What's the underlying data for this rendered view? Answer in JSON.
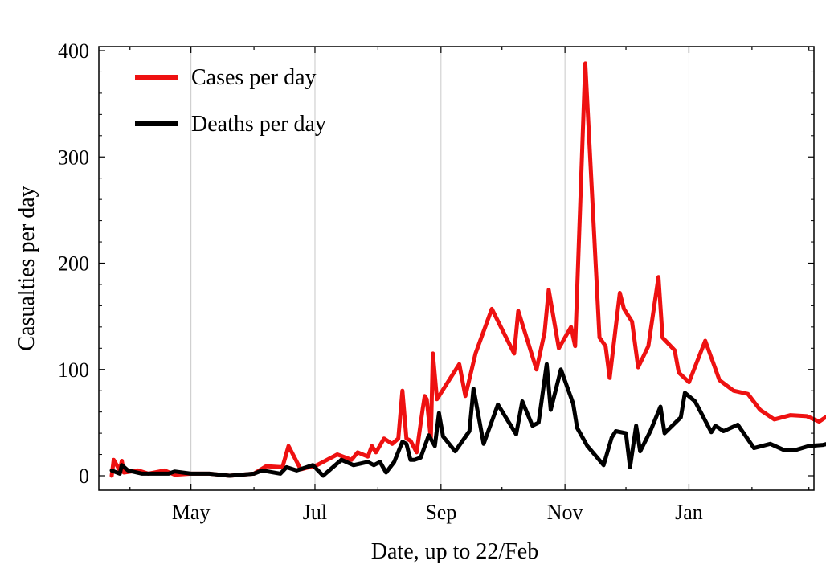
{
  "chart_data": {
    "type": "line",
    "title": "",
    "xlabel": "Date, up to 22/Feb",
    "ylabel": "Casualties per day",
    "ylim": [
      0,
      400
    ],
    "yticks": [
      0,
      100,
      200,
      300,
      400
    ],
    "x_start": "2020-03-23",
    "x_end": "2021-02-22",
    "x_tick_labels": [
      "May",
      "Jul",
      "Sep",
      "Nov",
      "Jan"
    ],
    "grid": "vertical",
    "legend_position": "top-left",
    "series": [
      {
        "name": "Cases per day",
        "color": "#ee1111",
        "points": [
          [
            "2020-03-23",
            0
          ],
          [
            "2020-03-24",
            15
          ],
          [
            "2020-03-27",
            5
          ],
          [
            "2020-03-28",
            14
          ],
          [
            "2020-03-29",
            3
          ],
          [
            "2020-04-05",
            5
          ],
          [
            "2020-04-10",
            2
          ],
          [
            "2020-04-18",
            5
          ],
          [
            "2020-04-23",
            1
          ],
          [
            "2020-05-01",
            2
          ],
          [
            "2020-05-10",
            2
          ],
          [
            "2020-05-20",
            0
          ],
          [
            "2020-06-01",
            2
          ],
          [
            "2020-06-07",
            9
          ],
          [
            "2020-06-15",
            8
          ],
          [
            "2020-06-18",
            28
          ],
          [
            "2020-06-24",
            6
          ],
          [
            "2020-07-02",
            10
          ],
          [
            "2020-07-12",
            20
          ],
          [
            "2020-07-19",
            15
          ],
          [
            "2020-07-22",
            22
          ],
          [
            "2020-07-27",
            18
          ],
          [
            "2020-07-29",
            28
          ],
          [
            "2020-07-31",
            22
          ],
          [
            "2020-08-04",
            35
          ],
          [
            "2020-08-08",
            30
          ],
          [
            "2020-08-11",
            35
          ],
          [
            "2020-08-13",
            80
          ],
          [
            "2020-08-15",
            35
          ],
          [
            "2020-08-17",
            33
          ],
          [
            "2020-08-20",
            22
          ],
          [
            "2020-08-23",
            63
          ],
          [
            "2020-08-24",
            75
          ],
          [
            "2020-08-25",
            72
          ],
          [
            "2020-08-27",
            35
          ],
          [
            "2020-08-28",
            115
          ],
          [
            "2020-08-30",
            72
          ],
          [
            "2020-09-10",
            105
          ],
          [
            "2020-09-13",
            75
          ],
          [
            "2020-09-18",
            115
          ],
          [
            "2020-09-26",
            157
          ],
          [
            "2020-10-07",
            115
          ],
          [
            "2020-10-09",
            155
          ],
          [
            "2020-10-18",
            100
          ],
          [
            "2020-10-22",
            135
          ],
          [
            "2020-10-24",
            175
          ],
          [
            "2020-10-29",
            120
          ],
          [
            "2020-11-04",
            140
          ],
          [
            "2020-11-06",
            122
          ],
          [
            "2020-11-11",
            388
          ],
          [
            "2020-11-18",
            130
          ],
          [
            "2020-11-21",
            122
          ],
          [
            "2020-11-23",
            92
          ],
          [
            "2020-11-28",
            172
          ],
          [
            "2020-11-30",
            157
          ],
          [
            "2020-12-04",
            145
          ],
          [
            "2020-12-07",
            102
          ],
          [
            "2020-12-12",
            122
          ],
          [
            "2020-12-17",
            187
          ],
          [
            "2020-12-19",
            130
          ],
          [
            "2020-12-25",
            118
          ],
          [
            "2020-12-27",
            97
          ],
          [
            "2021-01-01",
            88
          ],
          [
            "2021-01-09",
            127
          ],
          [
            "2021-01-16",
            90
          ],
          [
            "2021-01-23",
            80
          ],
          [
            "2021-01-30",
            77
          ],
          [
            "2021-02-05",
            62
          ],
          [
            "2021-02-12",
            53
          ],
          [
            "2021-02-20",
            57
          ],
          [
            "2021-02-28",
            56
          ],
          [
            "2021-03-06",
            51
          ],
          [
            "2021-03-14",
            61
          ]
        ]
      },
      {
        "name": "Deaths per day",
        "color": "#000000",
        "points": [
          [
            "2020-03-23",
            5
          ],
          [
            "2020-03-27",
            2
          ],
          [
            "2020-03-28",
            10
          ],
          [
            "2020-03-31",
            5
          ],
          [
            "2020-04-07",
            2
          ],
          [
            "2020-04-12",
            2
          ],
          [
            "2020-04-20",
            2
          ],
          [
            "2020-04-23",
            4
          ],
          [
            "2020-05-01",
            2
          ],
          [
            "2020-05-10",
            2
          ],
          [
            "2020-05-20",
            0
          ],
          [
            "2020-06-01",
            2
          ],
          [
            "2020-06-05",
            5
          ],
          [
            "2020-06-14",
            2
          ],
          [
            "2020-06-17",
            8
          ],
          [
            "2020-06-22",
            5
          ],
          [
            "2020-06-30",
            10
          ],
          [
            "2020-07-05",
            0
          ],
          [
            "2020-07-14",
            15
          ],
          [
            "2020-07-20",
            10
          ],
          [
            "2020-07-27",
            13
          ],
          [
            "2020-07-30",
            10
          ],
          [
            "2020-08-02",
            13
          ],
          [
            "2020-08-05",
            3
          ],
          [
            "2020-08-09",
            13
          ],
          [
            "2020-08-13",
            32
          ],
          [
            "2020-08-15",
            30
          ],
          [
            "2020-08-17",
            15
          ],
          [
            "2020-08-19",
            15
          ],
          [
            "2020-08-22",
            17
          ],
          [
            "2020-08-26",
            38
          ],
          [
            "2020-08-29",
            28
          ],
          [
            "2020-08-31",
            59
          ],
          [
            "2020-09-02",
            37
          ],
          [
            "2020-09-08",
            23
          ],
          [
            "2020-09-15",
            42
          ],
          [
            "2020-09-17",
            82
          ],
          [
            "2020-09-22",
            30
          ],
          [
            "2020-09-29",
            67
          ],
          [
            "2020-10-08",
            39
          ],
          [
            "2020-10-11",
            70
          ],
          [
            "2020-10-16",
            47
          ],
          [
            "2020-10-19",
            50
          ],
          [
            "2020-10-23",
            105
          ],
          [
            "2020-10-25",
            62
          ],
          [
            "2020-10-30",
            100
          ],
          [
            "2020-11-05",
            68
          ],
          [
            "2020-11-07",
            45
          ],
          [
            "2020-11-12",
            28
          ],
          [
            "2020-11-20",
            10
          ],
          [
            "2020-11-24",
            36
          ],
          [
            "2020-11-26",
            42
          ],
          [
            "2020-12-01",
            40
          ],
          [
            "2020-12-03",
            8
          ],
          [
            "2020-12-06",
            47
          ],
          [
            "2020-12-08",
            23
          ],
          [
            "2020-12-13",
            42
          ],
          [
            "2020-12-18",
            65
          ],
          [
            "2020-12-20",
            40
          ],
          [
            "2020-12-28",
            55
          ],
          [
            "2020-12-30",
            78
          ],
          [
            "2021-01-04",
            70
          ],
          [
            "2021-01-12",
            41
          ],
          [
            "2021-01-14",
            47
          ],
          [
            "2021-01-18",
            42
          ],
          [
            "2021-01-25",
            48
          ],
          [
            "2021-02-02",
            26
          ],
          [
            "2021-02-10",
            30
          ],
          [
            "2021-02-17",
            24
          ],
          [
            "2021-02-22",
            24
          ],
          [
            "2021-03-01",
            28
          ],
          [
            "2021-03-08",
            29
          ],
          [
            "2021-03-14",
            32
          ]
        ]
      }
    ]
  }
}
